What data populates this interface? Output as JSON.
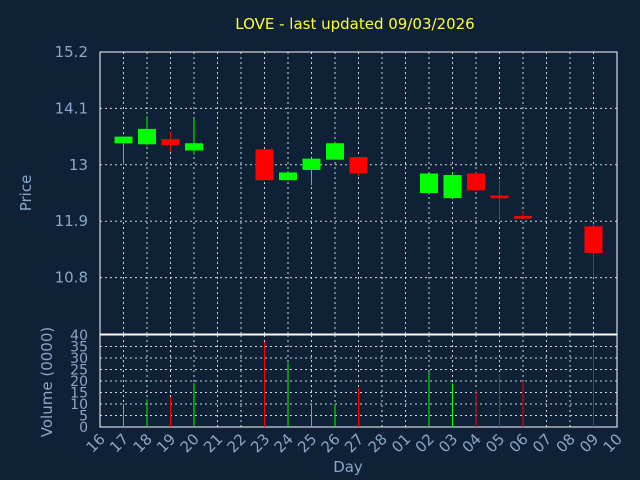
{
  "chart_data": [
    {
      "type": "candlestick",
      "title": "LOVE - last updated 09/03/2026",
      "ylabel": "Price",
      "ylim": [
        9.7,
        15.2
      ],
      "yticks": [
        "10.8",
        "11.9",
        "13",
        "14.1",
        "15.2"
      ],
      "grid": true,
      "colors": {
        "up": "#00ff00",
        "down": "#ff0000"
      },
      "x": [
        "16",
        "17",
        "18",
        "19",
        "20",
        "21",
        "22",
        "23",
        "24",
        "25",
        "26",
        "27",
        "28",
        "01",
        "02",
        "03",
        "04",
        "05",
        "06",
        "07",
        "08",
        "09",
        "10"
      ],
      "candles": [
        {
          "day": "17",
          "open": 13.42,
          "high": 13.55,
          "low": 13.0,
          "close": 13.55
        },
        {
          "day": "18",
          "open": 13.4,
          "high": 13.95,
          "low": 13.38,
          "close": 13.7
        },
        {
          "day": "19",
          "open": 13.5,
          "high": 13.65,
          "low": 13.25,
          "close": 13.38
        },
        {
          "day": "20",
          "open": 13.28,
          "high": 13.9,
          "low": 13.2,
          "close": 13.42
        },
        {
          "day": "23",
          "open": 13.3,
          "high": 13.3,
          "low": 12.7,
          "close": 12.7
        },
        {
          "day": "24",
          "open": 12.7,
          "high": 12.88,
          "low": 12.7,
          "close": 12.85
        },
        {
          "day": "25",
          "open": 12.9,
          "high": 13.12,
          "low": 12.6,
          "close": 13.12
        },
        {
          "day": "26",
          "open": 13.1,
          "high": 13.45,
          "low": 13.1,
          "close": 13.42
        },
        {
          "day": "27",
          "open": 13.15,
          "high": 13.15,
          "low": 12.78,
          "close": 12.83
        },
        {
          "day": "02",
          "open": 12.45,
          "high": 12.8,
          "low": 12.45,
          "close": 12.83
        },
        {
          "day": "03",
          "open": 12.35,
          "high": 12.85,
          "low": 12.35,
          "close": 12.8
        },
        {
          "day": "04",
          "open": 12.83,
          "high": 12.85,
          "low": 12.5,
          "close": 12.5
        },
        {
          "day": "05",
          "open": 12.4,
          "high": 12.7,
          "low": 11.95,
          "close": 12.35
        },
        {
          "day": "06",
          "open": 12.0,
          "high": 12.1,
          "low": 11.95,
          "close": 11.95
        },
        {
          "day": "09",
          "open": 11.8,
          "high": 11.85,
          "low": 10.8,
          "close": 11.28
        }
      ]
    },
    {
      "type": "bar",
      "ylabel": "Volume (0000)",
      "xlabel": "Day",
      "ylim": [
        0,
        40
      ],
      "yticks": [
        "0",
        "5",
        "10",
        "15",
        "20",
        "25",
        "30",
        "35",
        "40"
      ],
      "categories": [
        "16",
        "17",
        "18",
        "19",
        "20",
        "21",
        "22",
        "23",
        "24",
        "25",
        "26",
        "27",
        "28",
        "01",
        "02",
        "03",
        "04",
        "05",
        "06",
        "07",
        "08",
        "09",
        "10"
      ],
      "values": [
        0,
        10,
        12,
        13,
        19,
        0,
        0,
        37,
        28,
        10,
        10,
        17,
        0,
        0,
        24,
        19,
        16,
        23,
        20,
        0,
        0,
        35,
        0
      ],
      "bar_colors": [
        "#00ff00",
        "#00ff00",
        "#00ff00",
        "#ff0000",
        "#00ff00",
        "#00ff00",
        "#00ff00",
        "#ff0000",
        "#00ff00",
        "#00ff00",
        "#00ff00",
        "#ff0000",
        "#00ff00",
        "#00ff00",
        "#00ff00",
        "#00ff00",
        "#ff0000",
        "#ff0000",
        "#ff0000",
        "#00ff00",
        "#00ff00",
        "#ff0000",
        "#00ff00"
      ]
    }
  ]
}
